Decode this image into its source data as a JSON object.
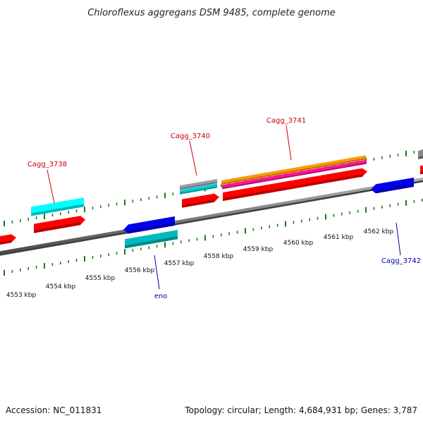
{
  "title": "Chloroflexus aggregans DSM 9485, complete genome",
  "footer": {
    "accession": "Accession: NC_011831",
    "summary": "Topology: circular; Length: 4,684,931 bp; Genes: 3,787"
  },
  "colors": {
    "backbone": "#808080",
    "tick": "#1a7a1a",
    "label_forward": "#cc0000",
    "label_reverse": "#0000aa"
  },
  "ruler_labels": [
    "4553 kbp",
    "4554 kbp",
    "4555 kbp",
    "4556 kbp",
    "4557 kbp",
    "4558 kbp",
    "4559 kbp",
    "4560 kbp",
    "4561 kbp",
    "4562 kbp"
  ],
  "gene_labels": [
    {
      "id": "cagg3738",
      "text": "Cagg_3738",
      "strand": "forward"
    },
    {
      "id": "cagg3740",
      "text": "Cagg_3740",
      "strand": "forward"
    },
    {
      "id": "cagg3741",
      "text": "Cagg_3741",
      "strand": "forward"
    },
    {
      "id": "eno",
      "text": "eno",
      "strand": "reverse"
    },
    {
      "id": "cagg3742",
      "text": "Cagg_3742",
      "strand": "reverse"
    }
  ],
  "features": [
    {
      "id": "f1",
      "color": "#ff0000",
      "strand": "forward"
    },
    {
      "id": "f2",
      "color": "#00ffff",
      "strand": "forward"
    },
    {
      "id": "f3",
      "color": "#ff0000",
      "strand": "forward"
    },
    {
      "id": "f4",
      "color": "#999aaa",
      "strand": "forward"
    },
    {
      "id": "f5",
      "color": "#00cccc",
      "strand": "forward"
    },
    {
      "id": "f6",
      "color": "#ff0000",
      "strand": "forward"
    },
    {
      "id": "f7",
      "color": "#ff9900",
      "strand": "forward"
    },
    {
      "id": "f8",
      "color": "#ff1493",
      "strand": "forward"
    },
    {
      "id": "f9",
      "color": "#ff0000",
      "strand": "forward"
    },
    {
      "id": "f10",
      "color": "#888888",
      "strand": "forward"
    },
    {
      "id": "f11",
      "color": "#ff0000",
      "strand": "forward"
    },
    {
      "id": "f12",
      "color": "#0000ee",
      "strand": "reverse"
    },
    {
      "id": "f13",
      "color": "#00bbbb",
      "strand": "reverse"
    },
    {
      "id": "f14",
      "color": "#0000ee",
      "strand": "reverse"
    }
  ]
}
